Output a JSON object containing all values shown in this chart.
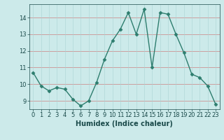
{
  "xlabel": "Humidex (Indice chaleur)",
  "x": [
    0,
    1,
    2,
    3,
    4,
    5,
    6,
    7,
    8,
    9,
    10,
    11,
    12,
    13,
    14,
    15,
    16,
    17,
    18,
    19,
    20,
    21,
    22,
    23
  ],
  "y": [
    10.7,
    9.9,
    9.6,
    9.8,
    9.7,
    9.1,
    8.7,
    9.0,
    10.1,
    11.5,
    12.6,
    13.3,
    14.3,
    13.0,
    14.5,
    11.0,
    14.3,
    14.2,
    13.0,
    11.9,
    10.6,
    10.4,
    9.9,
    8.8
  ],
  "line_color": "#2d7d6e",
  "marker": "D",
  "marker_size": 2.5,
  "bg_color": "#cceaea",
  "grid_color": "#aad4d4",
  "ylim": [
    8.5,
    14.8
  ],
  "yticks": [
    9,
    10,
    11,
    12,
    13,
    14
  ],
  "xlim": [
    -0.5,
    23.5
  ],
  "xticks": [
    0,
    1,
    2,
    3,
    4,
    5,
    6,
    7,
    8,
    9,
    10,
    11,
    12,
    13,
    14,
    15,
    16,
    17,
    18,
    19,
    20,
    21,
    22,
    23
  ],
  "label_color": "#1a4a4a",
  "xlabel_fontsize": 7,
  "tick_fontsize": 6,
  "line_width": 1.0
}
